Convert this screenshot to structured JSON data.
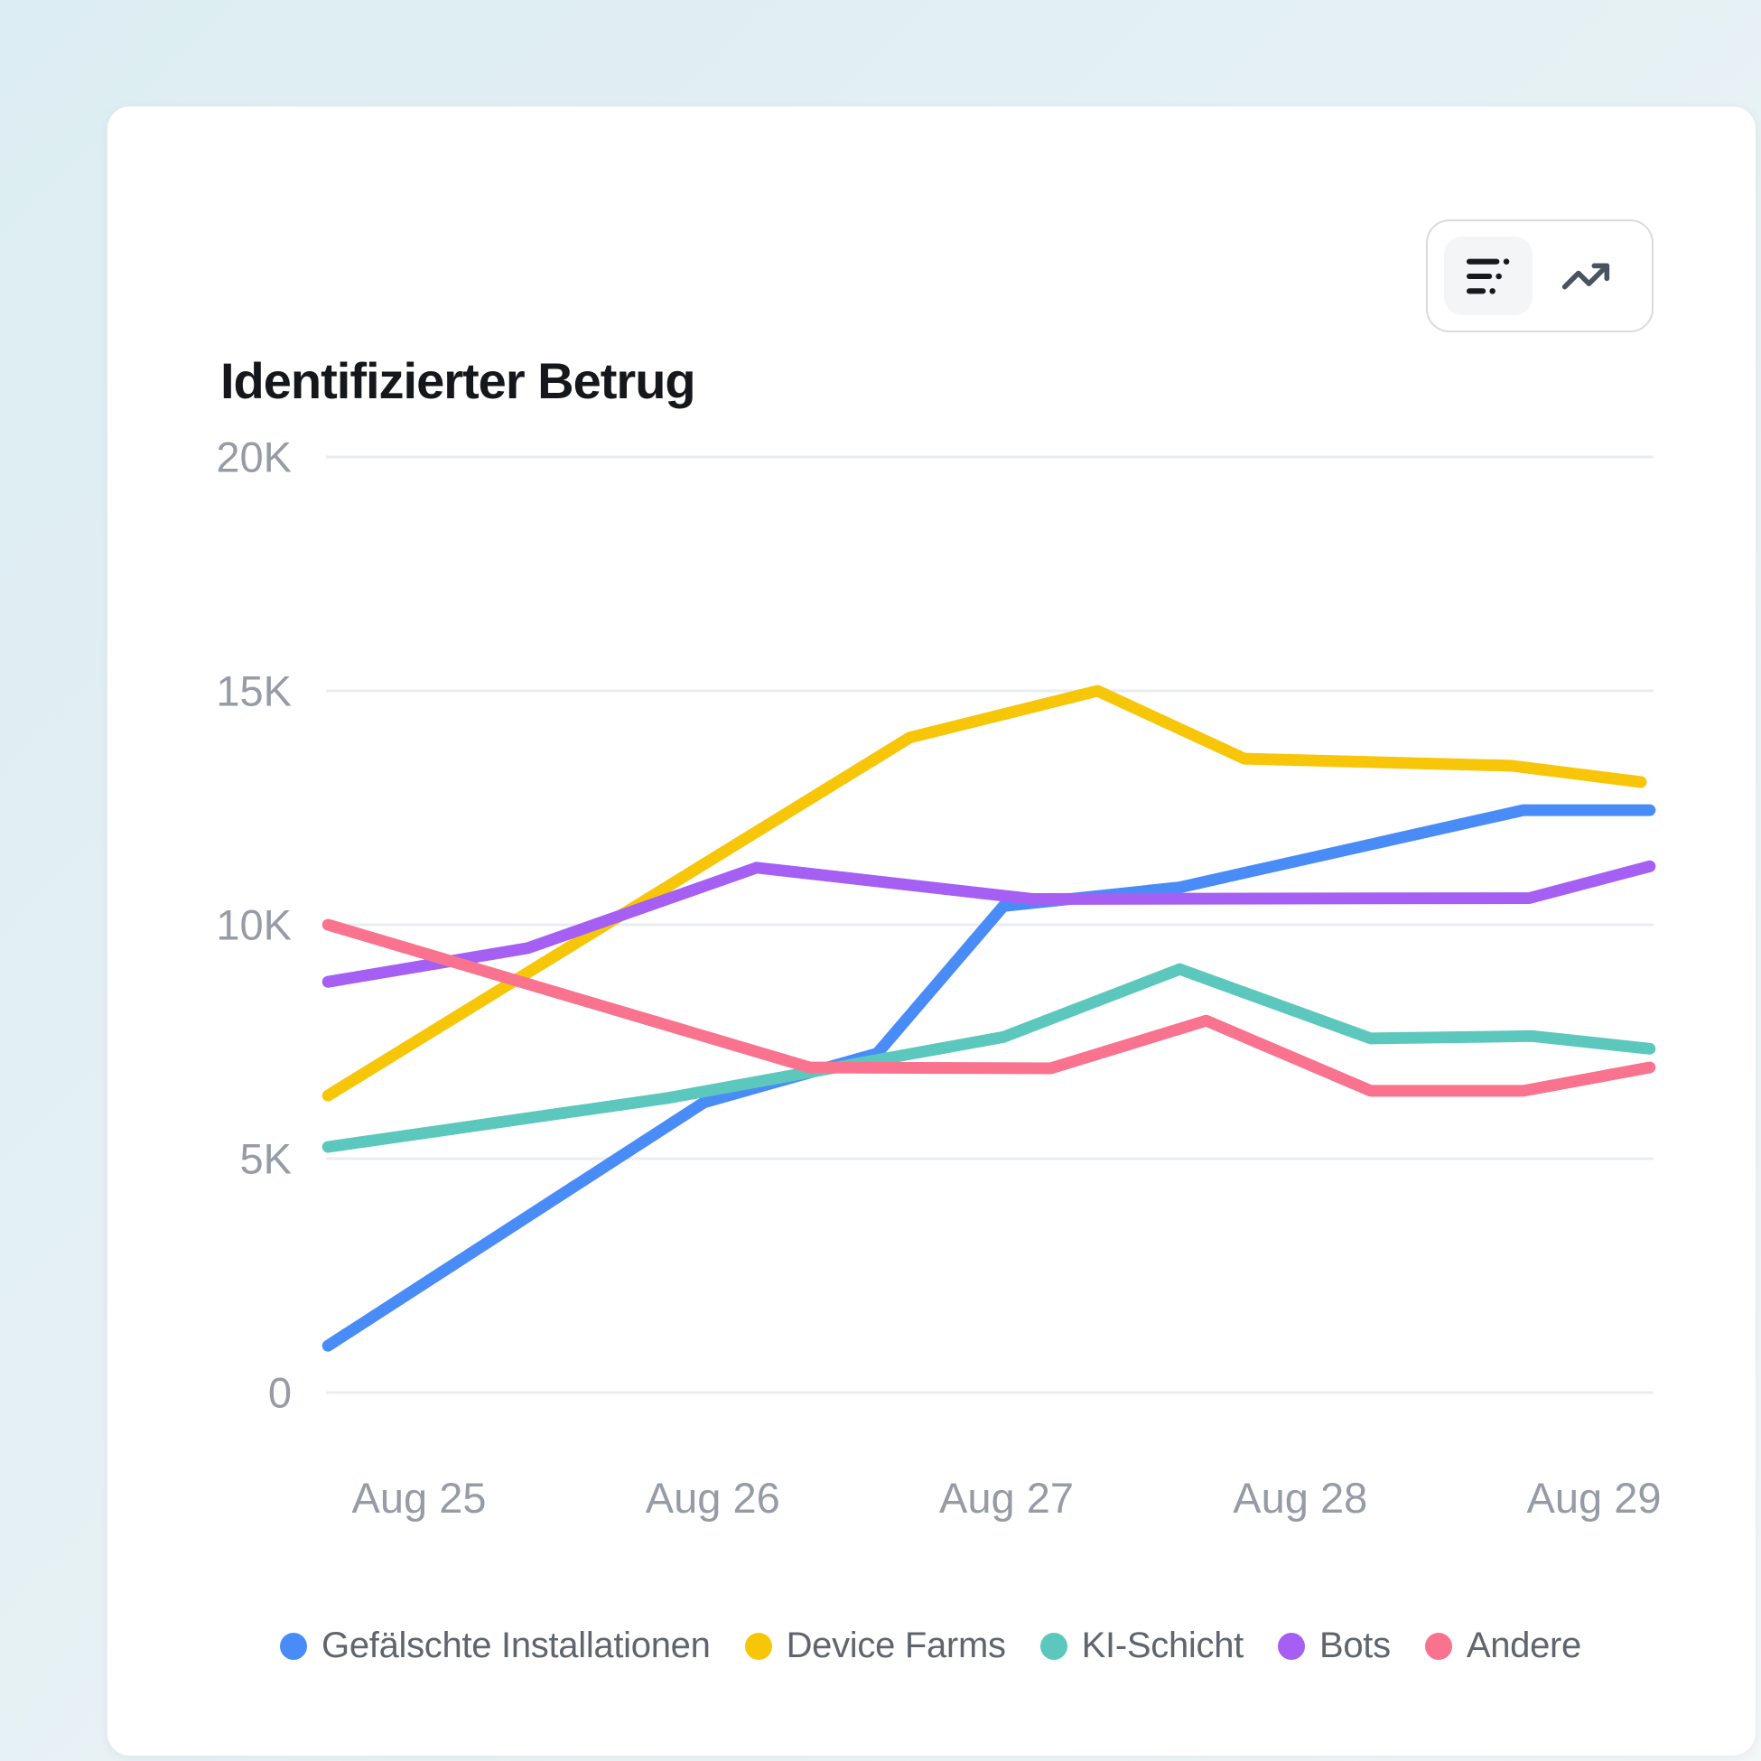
{
  "header": {
    "title": "Identifizierter Betrug"
  },
  "toolbar": {
    "options": [
      {
        "id": "summary",
        "icon": "list-summary-icon",
        "selected": true
      },
      {
        "id": "trend",
        "icon": "trending-up-icon",
        "selected": false
      }
    ]
  },
  "chart_data": {
    "type": "line",
    "title": "Identifizierter Betrug",
    "x_labels": [
      "Aug 25",
      "Aug 26",
      "Aug 27",
      "Aug 28",
      "Aug 29"
    ],
    "y_ticks": [
      {
        "label": "0",
        "value": 0
      },
      {
        "label": "5K",
        "value": 5000
      },
      {
        "label": "10K",
        "value": 10000
      },
      {
        "label": "15K",
        "value": 15000
      },
      {
        "label": "20K",
        "value": 20000
      }
    ],
    "ylim": [
      0,
      20000
    ],
    "grid": "horizontal",
    "legend_position": "bottom",
    "series": [
      {
        "name": "Gefälschte Installationen",
        "color": "#4a8cf7",
        "points": [
          [
            -0.31,
            1000
          ],
          [
            0.97,
            6200
          ],
          [
            1.56,
            7250
          ],
          [
            1.99,
            10400
          ],
          [
            2.59,
            10800
          ],
          [
            3.76,
            12450
          ],
          [
            4.19,
            12450
          ]
        ]
      },
      {
        "name": "Device Farms",
        "color": "#f8c609",
        "points": [
          [
            -0.31,
            6350
          ],
          [
            1.67,
            14000
          ],
          [
            2.31,
            15000
          ],
          [
            2.81,
            13550
          ],
          [
            3.72,
            13400
          ],
          [
            4.16,
            13050
          ]
        ]
      },
      {
        "name": "KI-Schicht",
        "color": "#5cc8bd",
        "points": [
          [
            -0.31,
            5250
          ],
          [
            0.85,
            6300
          ],
          [
            1.99,
            7600
          ],
          [
            2.59,
            9050
          ],
          [
            3.24,
            7570
          ],
          [
            3.79,
            7620
          ],
          [
            4.19,
            7350
          ]
        ]
      },
      {
        "name": "Bots",
        "color": "#a55ff3",
        "points": [
          [
            -0.31,
            8780
          ],
          [
            0.37,
            9500
          ],
          [
            1.15,
            11220
          ],
          [
            2.09,
            10550
          ],
          [
            3.78,
            10570
          ],
          [
            4.19,
            11250
          ]
        ]
      },
      {
        "name": "Andere",
        "color": "#f9738f",
        "points": [
          [
            -0.31,
            10000
          ],
          [
            1.33,
            6950
          ],
          [
            2.15,
            6930
          ],
          [
            2.68,
            7950
          ],
          [
            3.24,
            6450
          ],
          [
            3.76,
            6450
          ],
          [
            4.19,
            6950
          ]
        ]
      }
    ]
  }
}
